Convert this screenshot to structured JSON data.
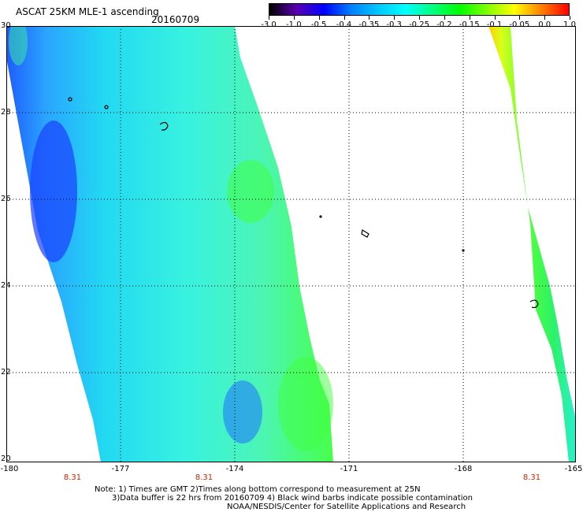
{
  "header": {
    "title": "ASCAT 25KM MLE-1 ascending",
    "date": "20160709"
  },
  "colorbar": {
    "labels": [
      "-3.0",
      "-1.0",
      "-0.5",
      "-0.4",
      "-0.35",
      "-0.3",
      "-0.25",
      "-0.2",
      "-0.15",
      "-0.1",
      "-0.05",
      "0.0",
      "1.0"
    ],
    "colors": [
      "#000000",
      "#5a00b0",
      "#0000ff",
      "#0080ff",
      "#00c8ff",
      "#00ffff",
      "#00ff80",
      "#00ff00",
      "#80ff00",
      "#ffff00",
      "#ff8000",
      "#ff0000"
    ]
  },
  "map": {
    "lat_labels": [
      "30",
      "28",
      "26",
      "24",
      "22",
      "20"
    ],
    "lon_labels": [
      "-180",
      "-177",
      "-174",
      "-171",
      "-168",
      "-165"
    ],
    "time_labels": [
      "8.31",
      "8.31",
      "8.31"
    ]
  },
  "footer": {
    "note_line1": "Note: 1) Times are GMT 2)Times along bottom correspond to measurement at 25N",
    "note_line2": "3)Data buffer is 22 hrs from 20160709 4) Black wind barbs indicate possible contamination",
    "credit": "NOAA/NESDIS/Center for Satellite Applications and Research"
  }
}
